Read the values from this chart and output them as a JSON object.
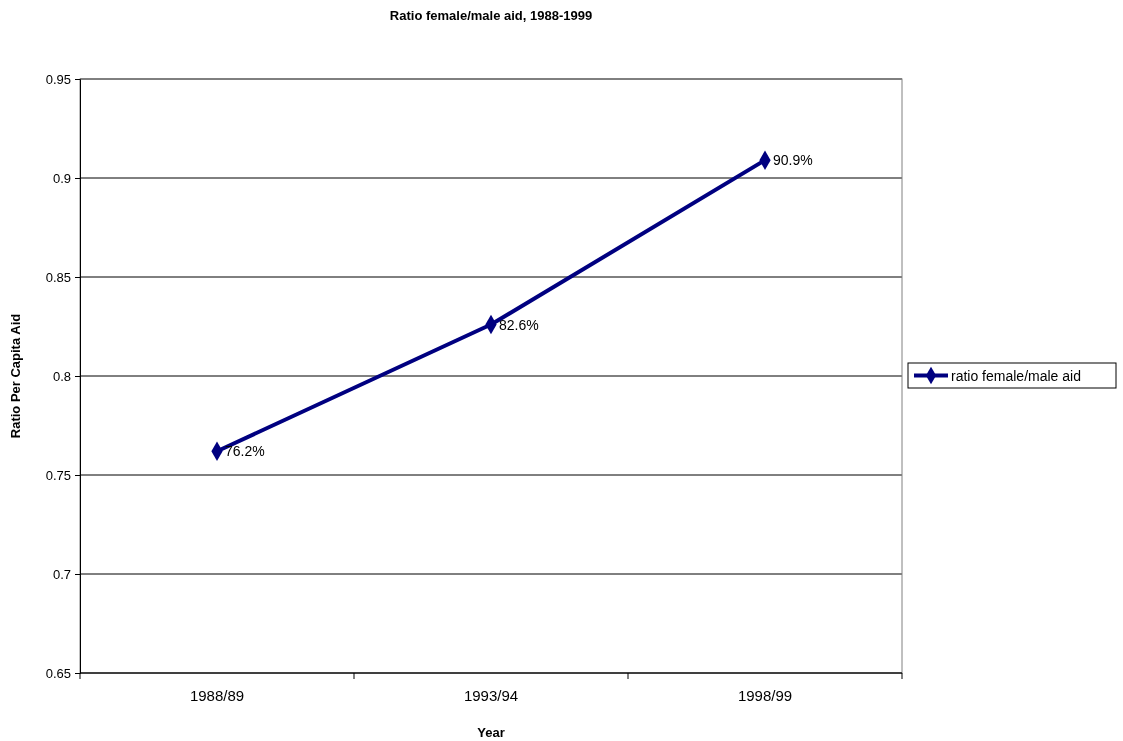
{
  "chart_data": {
    "type": "line",
    "title": "Ratio female/male aid, 1988-1999",
    "xlabel": "Year",
    "ylabel": "Ratio Per Capita Aid",
    "categories": [
      "1988/89",
      "1993/94",
      "1998/99"
    ],
    "series": [
      {
        "name": "ratio female/male aid",
        "color": "#000080",
        "values": [
          0.762,
          0.826,
          0.909
        ],
        "value_labels": [
          "76.2%",
          "82.6%",
          "90.9%"
        ]
      }
    ],
    "ylim": [
      0.65,
      0.95
    ],
    "yticks": [
      0.65,
      0.7,
      0.75,
      0.8,
      0.85,
      0.9,
      0.95
    ],
    "grid": "y",
    "legend": "right",
    "marker": "diamond",
    "line_style": "solid"
  }
}
